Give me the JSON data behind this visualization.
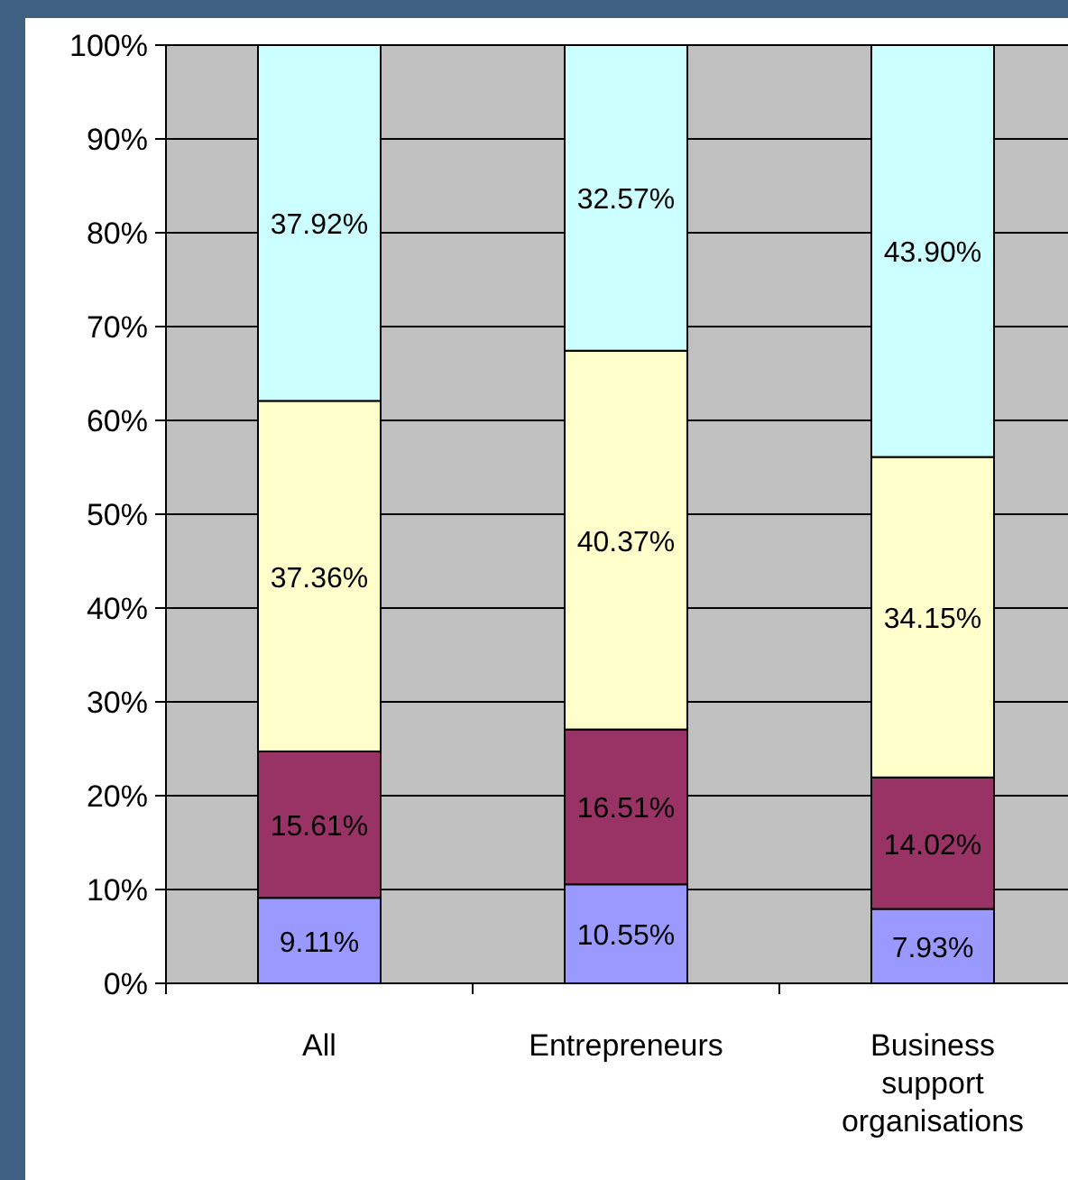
{
  "chart_data": {
    "type": "bar",
    "stacked": true,
    "categories": [
      "All",
      "Entrepreneurs",
      "Business support organisations"
    ],
    "series": [
      {
        "color": "#9999ff",
        "values": [
          9.11,
          10.55,
          7.93
        ],
        "value_labels": [
          "9.11%",
          "10.55%",
          "7.93%"
        ]
      },
      {
        "color": "#993366",
        "values": [
          15.61,
          16.51,
          14.02
        ],
        "value_labels": [
          "15.61%",
          "16.51%",
          "14.02%"
        ]
      },
      {
        "color": "#ffffcc",
        "values": [
          37.36,
          40.37,
          34.15
        ],
        "value_labels": [
          "37.36%",
          "40.37%",
          "34.15%"
        ]
      },
      {
        "color": "#ccffff",
        "values": [
          37.92,
          32.57,
          43.9
        ],
        "value_labels": [
          "37.92%",
          "32.57%",
          "43.90%"
        ]
      }
    ],
    "ylim": [
      0,
      100
    ],
    "yticks": [
      {
        "value": 0,
        "label": "0%"
      },
      {
        "value": 10,
        "label": "10%"
      },
      {
        "value": 20,
        "label": "20%"
      },
      {
        "value": 30,
        "label": "30%"
      },
      {
        "value": 40,
        "label": "40%"
      },
      {
        "value": 50,
        "label": "50%"
      },
      {
        "value": 60,
        "label": "60%"
      },
      {
        "value": 70,
        "label": "70%"
      },
      {
        "value": 80,
        "label": "80%"
      },
      {
        "value": 90,
        "label": "90%"
      },
      {
        "value": 100,
        "label": "100%"
      }
    ],
    "grid": "y"
  }
}
